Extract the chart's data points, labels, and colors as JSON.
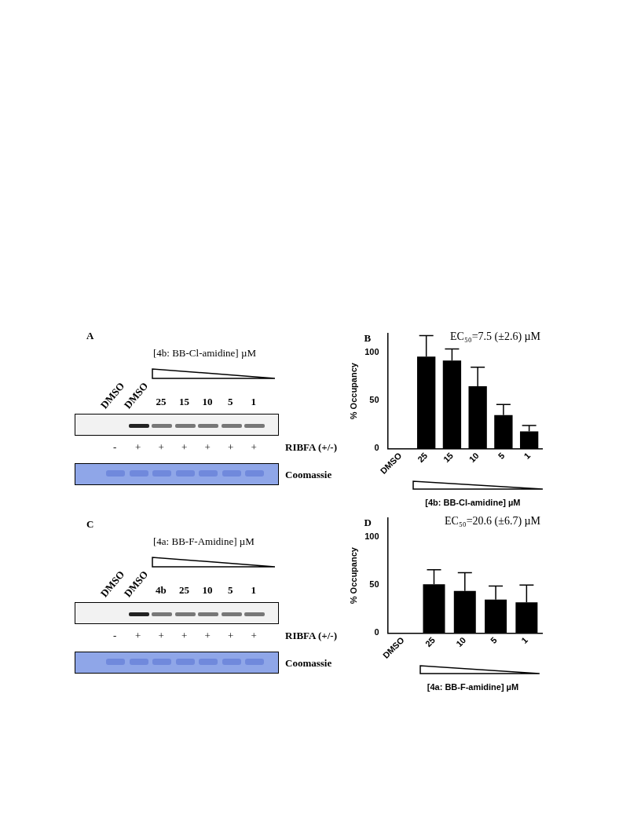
{
  "chart_data": [
    {
      "type": "other",
      "title": "A",
      "subtitle": "[4b: BB-Cl-amidine] µM",
      "categories": [
        "DMSO",
        "DMSO",
        "25",
        "15",
        "10",
        "5",
        "1"
      ],
      "annotations": [
        "-",
        "+",
        "+",
        "+",
        "+",
        "+",
        "+",
        "RIBFA (+/-)",
        "Coomassie"
      ]
    },
    {
      "type": "bar",
      "title": "B",
      "categories": [
        "DMSO",
        "25",
        "15",
        "10",
        "5",
        "1"
      ],
      "values": [
        0,
        96,
        92,
        65,
        35,
        18
      ],
      "errors": [
        null,
        22,
        12,
        20,
        11,
        6
      ],
      "color": "#000000",
      "ylabel": "% Occupancy",
      "xlabel": "[4b: BB-Cl-amidine] µM",
      "ylim": [
        0,
        120
      ],
      "yticks": [
        0,
        50,
        100
      ],
      "grid": false,
      "legend": false,
      "annotations": [
        "EC₅₀=7.5 (±2.6) µM"
      ]
    },
    {
      "type": "other",
      "title": "C",
      "subtitle": "[4a: BB-F-Amidine] µM",
      "categories": [
        "DMSO",
        "DMSO",
        "4b",
        "25",
        "10",
        "5",
        "1"
      ],
      "annotations": [
        "-",
        "+",
        "+",
        "+",
        "+",
        "+",
        "+",
        "RIBFA (+/-)",
        "Coomassie"
      ]
    },
    {
      "type": "bar",
      "title": "D",
      "categories": [
        "DMSO",
        "25",
        "10",
        "5",
        "1"
      ],
      "values": [
        0,
        51,
        44,
        35,
        32
      ],
      "errors": [
        null,
        15,
        19,
        14,
        18
      ],
      "color": "#000000",
      "ylabel": "% Occupancy",
      "xlabel": "[4a: BB-F-amidine] µM",
      "ylim": [
        0,
        120
      ],
      "yticks": [
        0,
        50,
        100
      ],
      "grid": false,
      "legend": false,
      "annotations": [
        "EC₅₀=20.6 (±6.7) µM"
      ]
    }
  ]
}
